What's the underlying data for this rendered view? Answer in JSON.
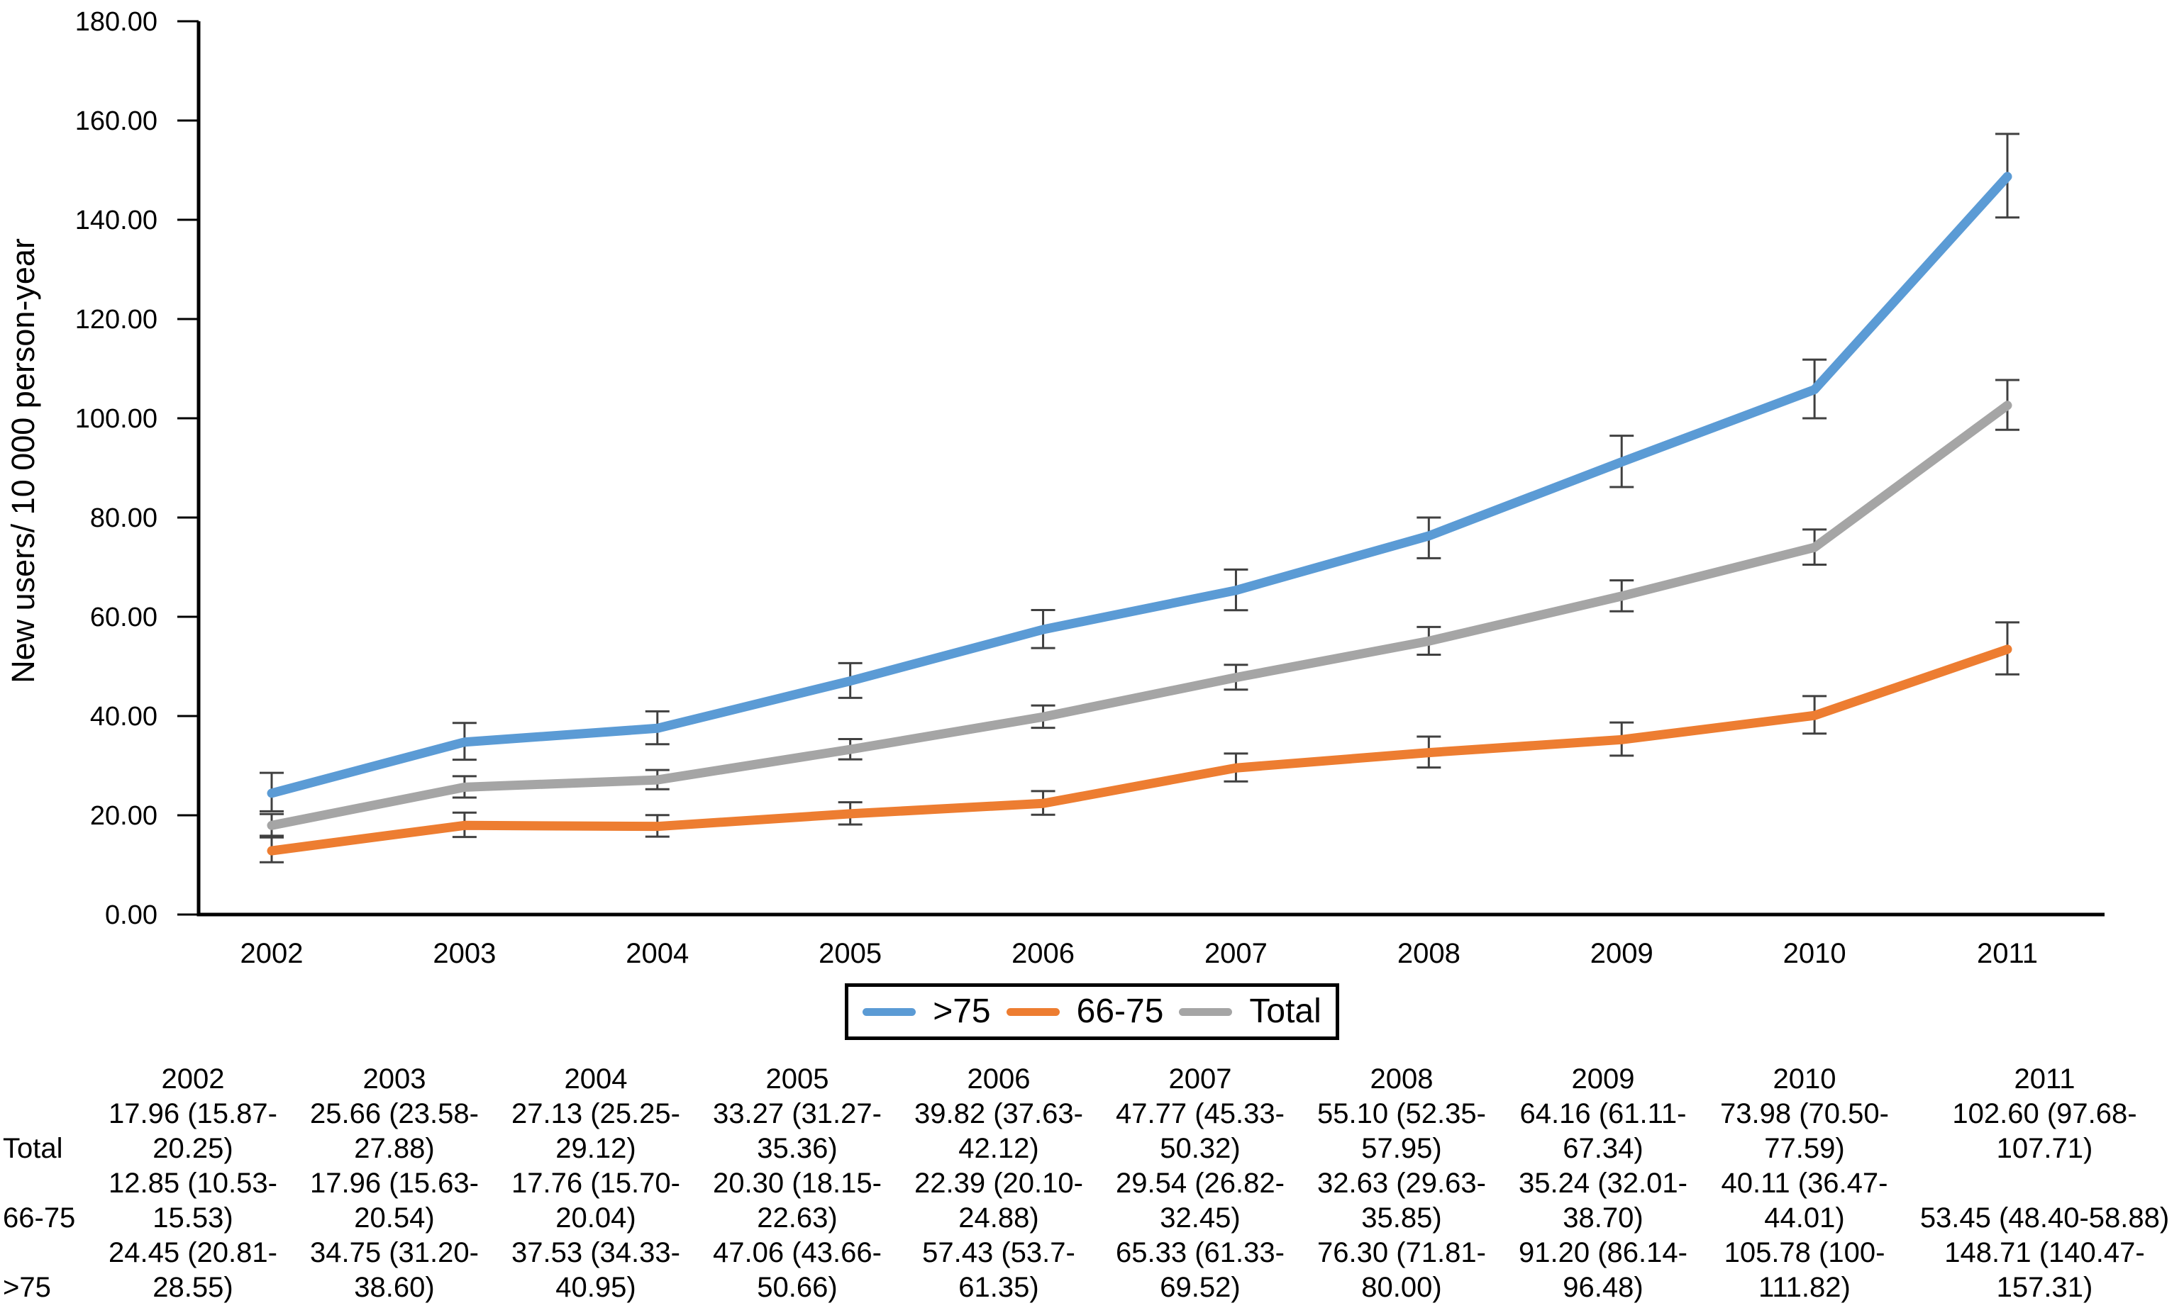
{
  "chart_data": {
    "type": "line",
    "title": "",
    "xlabel": "",
    "ylabel": "New users/ 10 000 person-year",
    "x": [
      "2002",
      "2003",
      "2004",
      "2005",
      "2006",
      "2007",
      "2008",
      "2009",
      "2010",
      "2011"
    ],
    "ylim": [
      0,
      180
    ],
    "ytick_step": 20,
    "ytick_labels": [
      "0.00",
      "20.00",
      "40.00",
      "60.00",
      "80.00",
      "100.00",
      "120.00",
      "140.00",
      "160.00",
      "180.00"
    ],
    "grid": false,
    "error_bars": true,
    "legend_position": "bottom",
    "series": [
      {
        "key": "gt75",
        "name": ">75",
        "color": "#5B9BD5",
        "values": [
          24.45,
          34.75,
          37.53,
          47.06,
          57.43,
          65.33,
          76.3,
          91.2,
          105.78,
          148.71
        ],
        "ci_low": [
          20.81,
          31.2,
          34.33,
          43.66,
          53.7,
          61.33,
          71.81,
          86.14,
          100,
          140.47
        ],
        "ci_high": [
          28.55,
          38.6,
          40.95,
          50.66,
          61.35,
          69.52,
          80.0,
          96.48,
          111.82,
          157.31
        ]
      },
      {
        "key": "66to75",
        "name": "66-75",
        "color": "#ED7D31",
        "values": [
          12.85,
          17.96,
          17.76,
          20.3,
          22.39,
          29.54,
          32.63,
          35.24,
          40.11,
          53.45
        ],
        "ci_low": [
          10.53,
          15.63,
          15.7,
          18.15,
          20.1,
          26.82,
          29.63,
          32.01,
          36.47,
          48.4
        ],
        "ci_high": [
          15.53,
          20.54,
          20.04,
          22.63,
          24.88,
          32.45,
          35.85,
          38.7,
          44.01,
          58.88
        ]
      },
      {
        "key": "total",
        "name": "Total",
        "color": "#A5A5A5",
        "values": [
          17.96,
          25.66,
          27.13,
          33.27,
          39.82,
          47.77,
          55.1,
          64.16,
          73.98,
          102.6
        ],
        "ci_low": [
          15.87,
          23.58,
          25.25,
          31.27,
          37.63,
          45.33,
          52.35,
          61.11,
          70.5,
          97.68
        ],
        "ci_high": [
          20.25,
          27.88,
          29.12,
          35.36,
          42.12,
          50.32,
          57.95,
          67.34,
          77.59,
          107.71
        ]
      }
    ]
  },
  "colors": {
    "axis": "#000000",
    "error_bar": "#404040",
    "blue": "#5B9BD5",
    "orange": "#ED7D31",
    "gray": "#A5A5A5"
  },
  "legend": {
    "items": [
      {
        "label": ">75",
        "color": "#5B9BD5"
      },
      {
        "label": "66-75",
        "color": "#ED7D31"
      },
      {
        "label": "Total",
        "color": "#A5A5A5"
      }
    ]
  },
  "table": {
    "years": [
      "2002",
      "2003",
      "2004",
      "2005",
      "2006",
      "2007",
      "2008",
      "2009",
      "2010",
      "2011"
    ],
    "rows": [
      {
        "key": "total",
        "label": "Total",
        "cells": [
          "17.96 (15.87-\n20.25)",
          "25.66 (23.58-\n27.88)",
          "27.13 (25.25-\n29.12)",
          "33.27 (31.27-\n35.36)",
          "39.82 (37.63-\n42.12)",
          "47.77 (45.33-\n50.32)",
          "55.10 (52.35-\n57.95)",
          "64.16 (61.11-\n67.34)",
          "73.98 (70.50-\n77.59)",
          "102.60 (97.68-\n107.71)"
        ]
      },
      {
        "key": "66to75",
        "label": "66-75",
        "cells": [
          "12.85 (10.53-\n15.53)",
          "17.96 (15.63-\n20.54)",
          "17.76 (15.70-\n20.04)",
          "20.30 (18.15-\n22.63)",
          "22.39 (20.10-\n24.88)",
          "29.54 (26.82-\n32.45)",
          "32.63 (29.63-\n35.85)",
          "35.24 (32.01-\n38.70)",
          "40.11 (36.47-\n44.01)",
          "53.45 (48.40-58.88)"
        ]
      },
      {
        "key": "gt75",
        "label": ">75",
        "cells": [
          "24.45 (20.81-\n28.55)",
          "34.75 (31.20-\n38.60)",
          "37.53 (34.33-\n40.95)",
          "47.06 (43.66-\n50.66)",
          "57.43 (53.7-\n61.35)",
          "65.33 (61.33-\n69.52)",
          "76.30 (71.81-\n80.00)",
          "91.20 (86.14-\n96.48)",
          "105.78 (100-\n111.82)",
          "148.71 (140.47-\n157.31)"
        ]
      }
    ]
  }
}
